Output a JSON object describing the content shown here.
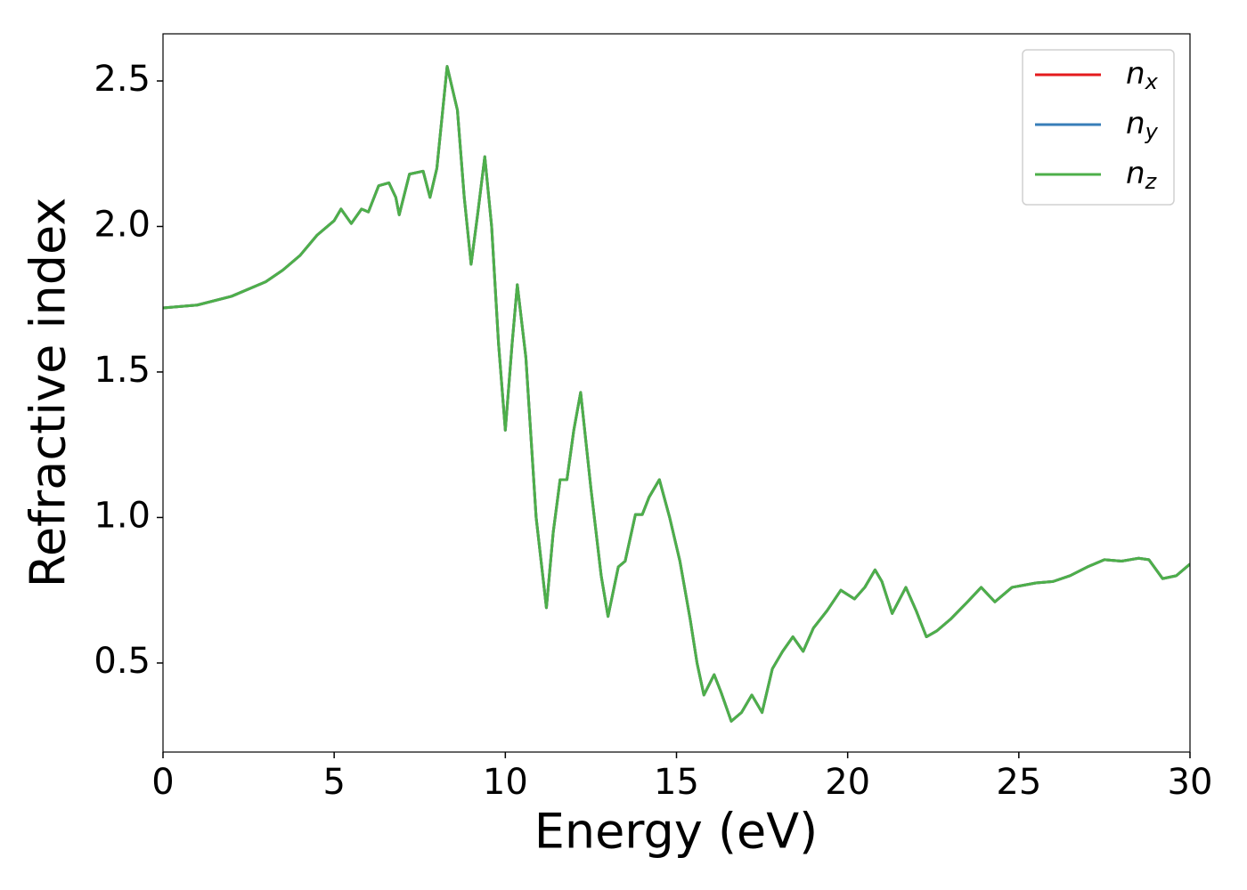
{
  "chart_data": {
    "type": "line",
    "xlabel": "Energy (eV)",
    "ylabel": "Refractive index",
    "x": [
      0,
      1,
      2,
      3,
      3.5,
      4,
      4.5,
      5,
      5.2,
      5.5,
      5.8,
      6.0,
      6.3,
      6.6,
      6.8,
      6.9,
      7.2,
      7.6,
      7.8,
      8.0,
      8.3,
      8.6,
      8.8,
      9.0,
      9.2,
      9.4,
      9.6,
      9.8,
      10.0,
      10.2,
      10.35,
      10.6,
      10.9,
      11.2,
      11.4,
      11.6,
      11.8,
      12.0,
      12.2,
      12.5,
      12.8,
      13.0,
      13.3,
      13.5,
      13.8,
      14.0,
      14.2,
      14.5,
      14.8,
      15.1,
      15.4,
      15.6,
      15.8,
      16.1,
      16.3,
      16.6,
      16.9,
      17.2,
      17.5,
      17.8,
      18.1,
      18.4,
      18.7,
      19.0,
      19.4,
      19.8,
      20.2,
      20.5,
      20.8,
      21.0,
      21.3,
      21.7,
      22.0,
      22.3,
      22.6,
      23.0,
      23.5,
      23.9,
      24.3,
      24.8,
      25.5,
      26.0,
      26.5,
      27.0,
      27.5,
      28.0,
      28.5,
      28.8,
      29.2,
      29.6,
      30.0
    ],
    "series": [
      {
        "name": "nx",
        "color": "#e41a1c",
        "values": [
          1.72,
          1.73,
          1.76,
          1.81,
          1.85,
          1.9,
          1.97,
          2.02,
          2.06,
          2.01,
          2.06,
          2.05,
          2.14,
          2.15,
          2.1,
          2.04,
          2.18,
          2.19,
          2.1,
          2.2,
          2.55,
          2.4,
          2.1,
          1.87,
          2.05,
          2.24,
          2.0,
          1.6,
          1.3,
          1.6,
          1.8,
          1.55,
          1.0,
          0.69,
          0.95,
          1.13,
          1.13,
          1.3,
          1.43,
          1.1,
          0.8,
          0.66,
          0.83,
          0.85,
          1.01,
          1.01,
          1.07,
          1.13,
          1.0,
          0.85,
          0.65,
          0.5,
          0.39,
          0.46,
          0.4,
          0.3,
          0.33,
          0.39,
          0.33,
          0.48,
          0.54,
          0.59,
          0.54,
          0.62,
          0.68,
          0.75,
          0.72,
          0.76,
          0.82,
          0.78,
          0.67,
          0.76,
          0.68,
          0.59,
          0.61,
          0.65,
          0.71,
          0.76,
          0.71,
          0.76,
          0.775,
          0.78,
          0.8,
          0.83,
          0.855,
          0.85,
          0.86,
          0.855,
          0.79,
          0.8,
          0.84
        ]
      },
      {
        "name": "ny",
        "color": "#377eb8",
        "values": [
          1.72,
          1.73,
          1.76,
          1.81,
          1.85,
          1.9,
          1.97,
          2.02,
          2.06,
          2.01,
          2.06,
          2.05,
          2.14,
          2.15,
          2.1,
          2.04,
          2.18,
          2.19,
          2.1,
          2.2,
          2.55,
          2.4,
          2.1,
          1.87,
          2.05,
          2.24,
          2.0,
          1.6,
          1.3,
          1.6,
          1.8,
          1.55,
          1.0,
          0.69,
          0.95,
          1.13,
          1.13,
          1.3,
          1.43,
          1.1,
          0.8,
          0.66,
          0.83,
          0.85,
          1.01,
          1.01,
          1.07,
          1.13,
          1.0,
          0.85,
          0.65,
          0.5,
          0.39,
          0.46,
          0.4,
          0.3,
          0.33,
          0.39,
          0.33,
          0.48,
          0.54,
          0.59,
          0.54,
          0.62,
          0.68,
          0.75,
          0.72,
          0.76,
          0.82,
          0.78,
          0.67,
          0.76,
          0.68,
          0.59,
          0.61,
          0.65,
          0.71,
          0.76,
          0.71,
          0.76,
          0.775,
          0.78,
          0.8,
          0.83,
          0.855,
          0.85,
          0.86,
          0.855,
          0.79,
          0.8,
          0.84
        ]
      },
      {
        "name": "nz",
        "color": "#4daf4a",
        "values": [
          1.72,
          1.73,
          1.76,
          1.81,
          1.85,
          1.9,
          1.97,
          2.02,
          2.06,
          2.01,
          2.06,
          2.05,
          2.14,
          2.15,
          2.1,
          2.04,
          2.18,
          2.19,
          2.1,
          2.2,
          2.55,
          2.4,
          2.1,
          1.87,
          2.05,
          2.24,
          2.0,
          1.6,
          1.3,
          1.6,
          1.8,
          1.55,
          1.0,
          0.69,
          0.95,
          1.13,
          1.13,
          1.3,
          1.43,
          1.1,
          0.8,
          0.66,
          0.83,
          0.85,
          1.01,
          1.01,
          1.07,
          1.13,
          1.0,
          0.85,
          0.65,
          0.5,
          0.39,
          0.46,
          0.4,
          0.3,
          0.33,
          0.39,
          0.33,
          0.48,
          0.54,
          0.59,
          0.54,
          0.62,
          0.68,
          0.75,
          0.72,
          0.76,
          0.82,
          0.78,
          0.67,
          0.76,
          0.68,
          0.59,
          0.61,
          0.65,
          0.71,
          0.76,
          0.71,
          0.76,
          0.775,
          0.78,
          0.8,
          0.83,
          0.855,
          0.85,
          0.86,
          0.855,
          0.79,
          0.8,
          0.84
        ]
      }
    ],
    "xlim": [
      0,
      30
    ],
    "xticks": [
      0,
      5,
      10,
      15,
      20,
      25,
      30
    ],
    "ylim": [
      0.194,
      2.662
    ],
    "yticks": [
      0.5,
      {
        "value": 1.0,
        "label": "1.0"
      },
      1.5,
      {
        "value": 2.0,
        "label": "2.0"
      },
      2.5
    ],
    "grid": false,
    "legend": "upper right"
  }
}
